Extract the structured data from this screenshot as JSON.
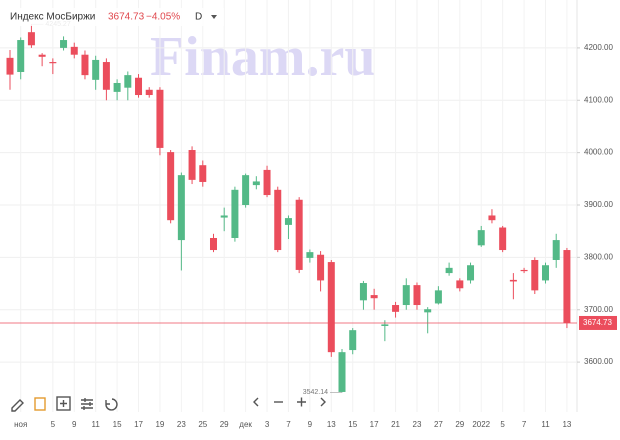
{
  "chart_data": {
    "type": "candlestick",
    "title": "Индекс МосБиржи",
    "change": "−4.05%",
    "interval": "D",
    "watermark": "Finam.ru",
    "up_color": "#53b987",
    "down_color": "#eb4d5c",
    "grid": true,
    "categories": [
      null,
      "ноя",
      null,
      null,
      "5",
      null,
      "9",
      null,
      "11",
      null,
      "15",
      null,
      "17",
      null,
      "19",
      null,
      "23",
      null,
      "25",
      null,
      "29",
      null,
      "дек",
      null,
      "3",
      null,
      "7",
      null,
      "9",
      null,
      "13",
      null,
      "15",
      null,
      "17",
      null,
      "21",
      null,
      "23",
      null,
      "27",
      null,
      "29",
      null,
      "2022",
      null,
      "5",
      null,
      "7",
      null,
      "11",
      null,
      "13"
    ],
    "open": [
      4181,
      4154,
      4230,
      4187,
      4173,
      4200,
      4202,
      4187,
      4139,
      4173,
      4116,
      4124,
      4143,
      4120,
      4120,
      4001,
      3833,
      4005,
      3976,
      3837,
      3876,
      3837,
      3900,
      3938,
      3967,
      3929,
      3862,
      3910,
      3799,
      3805,
      3791,
      3543,
      3623,
      3718,
      3728,
      3669,
      3709,
      3709,
      3747,
      3695,
      3712,
      3770,
      3756,
      3756,
      3823,
      3880,
      3857,
      3757,
      3776,
      3795,
      3756,
      3795,
      3814
    ],
    "high": [
      4196,
      4220,
      4245.27,
      4190,
      4180,
      4222,
      4210,
      4195,
      4185,
      4180,
      4140,
      4155,
      4150,
      4125,
      4125,
      4005,
      3962,
      4012,
      3985,
      3845,
      3895,
      3935,
      3960,
      3955,
      3975,
      3935,
      3880,
      3915,
      3815,
      3812,
      3795,
      3625,
      3665,
      3755,
      3740,
      3680,
      3715,
      3760,
      3752,
      3705,
      3745,
      3790,
      3760,
      3790,
      3860,
      3892,
      3860,
      3770,
      3780,
      3800,
      3790,
      3845,
      3818
    ],
    "low": [
      4120,
      4140,
      4200,
      4165,
      4150,
      4195,
      4180,
      4140,
      4120,
      4100,
      4100,
      4100,
      4105,
      4105,
      3995,
      3865,
      3775,
      3940,
      3935,
      3810,
      3850,
      3830,
      3895,
      3930,
      3915,
      3810,
      3835,
      3770,
      3790,
      3735,
      3610,
      3542.14,
      3615,
      3700,
      3700,
      3640,
      3685,
      3700,
      3700,
      3655,
      3710,
      3765,
      3735,
      3750,
      3820,
      3865,
      3810,
      3720,
      3770,
      3730,
      3750,
      3780,
      3665
    ],
    "close": [
      4149,
      4215,
      4205,
      4183,
      4172,
      4215,
      4187,
      4148,
      4177,
      4120,
      4133,
      4148,
      4110,
      4110,
      4009,
      3871,
      3957,
      3948,
      3944,
      3814,
      3880,
      3929,
      3957,
      3945,
      3919,
      3814,
      3875,
      3776,
      3810,
      3756,
      3619,
      3619,
      3661,
      3751,
      3722,
      3672,
      3696,
      3747,
      3709,
      3701,
      3737,
      3780,
      3741,
      3785,
      3852,
      3871,
      3814,
      3754,
      3774,
      3737,
      3785,
      3833,
      3674.73
    ],
    "ylim": [
      3520,
      4280
    ],
    "yticks": [
      {
        "value": 3600,
        "label": "3600.00"
      },
      {
        "value": 3700,
        "label": "3700.00"
      },
      {
        "value": 3800,
        "label": "3800.00"
      },
      {
        "value": 3900,
        "label": "3900.00"
      },
      {
        "value": 4000,
        "label": "4000.00"
      },
      {
        "value": 4100,
        "label": "4100.00"
      },
      {
        "value": 4200,
        "label": "4200.00"
      }
    ]
  }
}
